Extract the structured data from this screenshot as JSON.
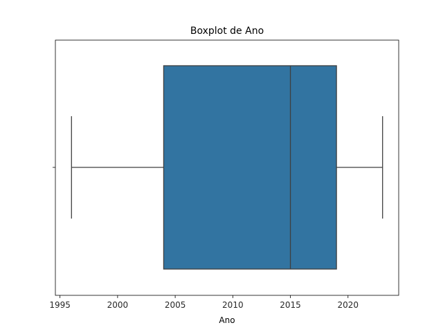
{
  "chart_data": {
    "type": "boxplot",
    "title": "Boxplot de Ano",
    "xlabel": "Ano",
    "ylabel": "",
    "orientation": "horizontal",
    "xlim": [
      1994.6,
      2024.4
    ],
    "xticks": [
      1995,
      2000,
      2005,
      2010,
      2015,
      2020
    ],
    "xtick_labels": [
      "1995",
      "2000",
      "2005",
      "2010",
      "2015",
      "2020"
    ],
    "grid": false,
    "series": [
      {
        "whisker_low": 1996,
        "q1": 2004,
        "median": 2015,
        "q3": 2019,
        "whisker_high": 2023
      }
    ],
    "colors": {
      "box_fill": "#3274a1",
      "line": "#3f3f3f",
      "frame": "#000000",
      "text": "#262626"
    }
  }
}
